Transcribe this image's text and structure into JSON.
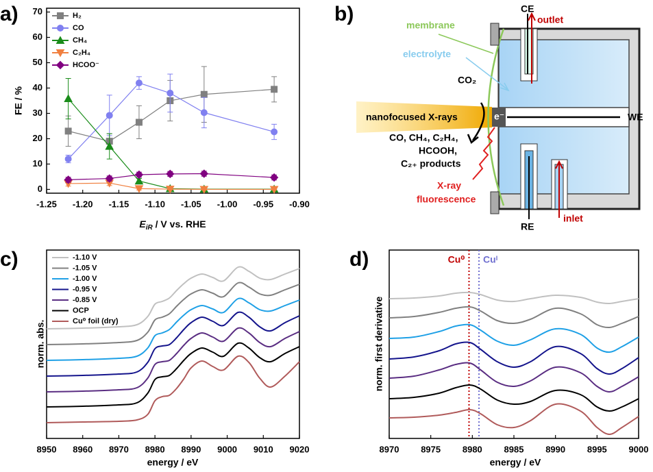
{
  "chart_data": [
    {
      "type": "line",
      "panel_label": "a)",
      "x_label": [
        "E",
        "iR",
        " / V vs. RHE"
      ],
      "y_label": "FE / %",
      "x": [
        -1.22,
        -1.163,
        -1.122,
        -1.079,
        -1.032,
        -0.935
      ],
      "xlim": [
        -1.25,
        -0.9
      ],
      "xticks": [
        -1.25,
        {
          "value": -1.2,
          "label": "-1.20"
        },
        -1.15,
        {
          "value": -1.1,
          "label": "-1.10"
        },
        -1.05,
        {
          "value": -1,
          "label": "-1.00"
        },
        -0.95,
        {
          "value": -0.9,
          "label": "-0.90"
        }
      ],
      "ylim": [
        -1.5,
        71.5
      ],
      "yticks": [
        0,
        10,
        20,
        30,
        40,
        50,
        60,
        70
      ],
      "grid": false,
      "legend": "upper left",
      "series": [
        {
          "name": "H₂",
          "color": "#808080",
          "marker": "square",
          "values": [
            23,
            19,
            26.5,
            35,
            37.5,
            39.5
          ],
          "errors": [
            6,
            3,
            6.5,
            8,
            11,
            5
          ]
        },
        {
          "name": "CO",
          "color": "#8080f0",
          "marker": "circle",
          "values": [
            12,
            29.2,
            42,
            38,
            30.3,
            22.7
          ],
          "errors": [
            1.5,
            8,
            2.5,
            7.5,
            6,
            3
          ]
        },
        {
          "name": "CH₄",
          "color": "#1a8c1a",
          "marker": "triangle-up",
          "values": [
            35.8,
            17,
            3.3,
            0.3,
            0.1,
            0.1
          ],
          "errors": [
            8,
            5,
            1,
            0.5,
            0.3,
            0.3
          ]
        },
        {
          "name": "C₂H₄",
          "color": "#f08040",
          "marker": "triangle-down",
          "values": [
            2.3,
            2.5,
            0.3,
            0.1,
            0,
            0
          ],
          "errors": [
            1,
            1,
            0.5,
            0.3,
            0.3,
            0.3
          ]
        },
        {
          "name": "HCOO⁻",
          "color": "#800080",
          "marker": "diamond",
          "values": [
            3.8,
            4.3,
            5.8,
            6.1,
            6.2,
            4.7
          ],
          "errors": [
            1,
            1,
            1,
            1,
            1,
            1
          ]
        }
      ]
    },
    {
      "type": "line",
      "smooth": true,
      "panel_label": "c)",
      "x_label": "energy / eV",
      "y_label": "norm. abs.",
      "x": [
        8950,
        8960,
        8970,
        8975,
        8978,
        8980,
        8982,
        8984,
        8986,
        8988,
        8990,
        8993,
        8996,
        8999,
        9003,
        9006,
        9009,
        9012,
        9016,
        9020
      ],
      "xlim": [
        8950,
        9020
      ],
      "xticks": [
        8950,
        8960,
        8970,
        8980,
        8990,
        9000,
        9010,
        9020
      ],
      "ylim": [
        0,
        275
      ],
      "grid": false,
      "legend": "upper left",
      "series": [
        {
          "name": "-1.10 V",
          "color": "#c0c0c0",
          "values": [
            160,
            161,
            163,
            166,
            178,
            196,
            200,
            205,
            216,
            226,
            234,
            240,
            235,
            230,
            250,
            244,
            234,
            232,
            240,
            248
          ]
        },
        {
          "name": "-1.05 V",
          "color": "#808080",
          "values": [
            137,
            138,
            140,
            143,
            155,
            173,
            177,
            182,
            193,
            203,
            211,
            217,
            212,
            207,
            227,
            221,
            211,
            209,
            217,
            225
          ]
        },
        {
          "name": "-1.00 V",
          "color": "#1ea0e6",
          "values": [
            114,
            115,
            117,
            120,
            132,
            150,
            154,
            159,
            170,
            180,
            188,
            194,
            189,
            184,
            204,
            198,
            188,
            186,
            194,
            202
          ]
        },
        {
          "name": "-0.95 V",
          "color": "#14148c",
          "values": [
            91,
            92,
            94,
            97,
            111,
            131,
            135,
            137,
            147,
            159,
            169,
            177,
            171,
            165,
            184,
            177,
            163,
            157,
            169,
            179
          ]
        },
        {
          "name": "-0.85 V",
          "color": "#5a2d82",
          "values": [
            68,
            69,
            71,
            74,
            88,
            108,
            112,
            114,
            124,
            136,
            146,
            154,
            148,
            142,
            161,
            154,
            140,
            134,
            146,
            156
          ]
        },
        {
          "name": "OCP",
          "color": "#000000",
          "values": [
            46,
            47,
            49,
            52,
            66,
            86,
            90,
            92,
            102,
            114,
            124,
            132,
            126,
            120,
            139,
            132,
            118,
            112,
            124,
            134
          ]
        },
        {
          "name": "Cu⁰ foil (dry)",
          "color": "#b05a5a",
          "values": [
            23,
            24,
            25,
            27,
            35,
            55,
            61,
            63,
            73,
            87,
            103,
            113,
            105,
            100,
            120,
            111,
            88,
            75,
            91,
            112
          ]
        }
      ]
    },
    {
      "type": "line",
      "smooth": true,
      "panel_label": "d)",
      "x_label": "energy / eV",
      "y_label": "norm. first derivative",
      "x": [
        8970,
        8973,
        8976,
        8978,
        8979.7,
        8981,
        8983,
        8985,
        8987,
        8990,
        8993,
        8995,
        8996.5,
        8998,
        9000
      ],
      "xlim": [
        8970,
        9000
      ],
      "xticks": [
        8970,
        8975,
        8980,
        8985,
        8990,
        8995,
        9000
      ],
      "ylim": [
        0,
        275
      ],
      "grid": false,
      "vlines": [
        {
          "x": 8979.6,
          "label": "Cu⁰",
          "color": "#c00000"
        },
        {
          "x": 8980.8,
          "label": "Cuᴵ",
          "color": "#7070d0"
        }
      ],
      "series": [
        {
          "color": "#c0c0c0",
          "values": [
            204,
            205,
            208,
            212,
            213,
            210,
            202,
            200,
            204,
            209,
            206,
            199,
            197,
            200,
            204
          ]
        },
        {
          "color": "#808080",
          "values": [
            176,
            178,
            184,
            190,
            192,
            186,
            172,
            168,
            174,
            190,
            182,
            166,
            162,
            168,
            178
          ]
        },
        {
          "color": "#1ea0e6",
          "values": [
            146,
            148,
            156,
            164,
            166,
            158,
            142,
            136,
            144,
            160,
            152,
            132,
            126,
            134,
            148
          ]
        },
        {
          "color": "#14148c",
          "values": [
            116,
            119,
            128,
            138,
            140,
            130,
            112,
            104,
            112,
            134,
            124,
            102,
            94,
            102,
            118
          ]
        },
        {
          "color": "#5a2d82",
          "values": [
            88,
            91,
            100,
            108,
            110,
            100,
            82,
            76,
            84,
            104,
            96,
            76,
            68,
            76,
            90
          ]
        },
        {
          "color": "#000000",
          "values": [
            58,
            60,
            66,
            74,
            78,
            72,
            56,
            50,
            54,
            70,
            64,
            46,
            40,
            46,
            58
          ]
        },
        {
          "color": "#b05a5a",
          "values": [
            30,
            31,
            34,
            38,
            42,
            36,
            20,
            16,
            26,
            50,
            40,
            16,
            6,
            16,
            32
          ]
        }
      ]
    }
  ],
  "diagram": {
    "panel_label": "b)",
    "membrane": "membrane",
    "electrolyte": "electrolyte",
    "co2": "CO₂",
    "xray": "nanofocused X-rays",
    "electron": "e⁻",
    "we": "WE",
    "ce": "CE",
    "outlet": "outlet",
    "re": "RE",
    "inlet": "inlet",
    "products": [
      "CO, CH₄, C₂H₄,",
      "HCOOH,",
      "C₂₊ products"
    ],
    "fluorescence": [
      "X-ray",
      "fluorescence"
    ]
  }
}
